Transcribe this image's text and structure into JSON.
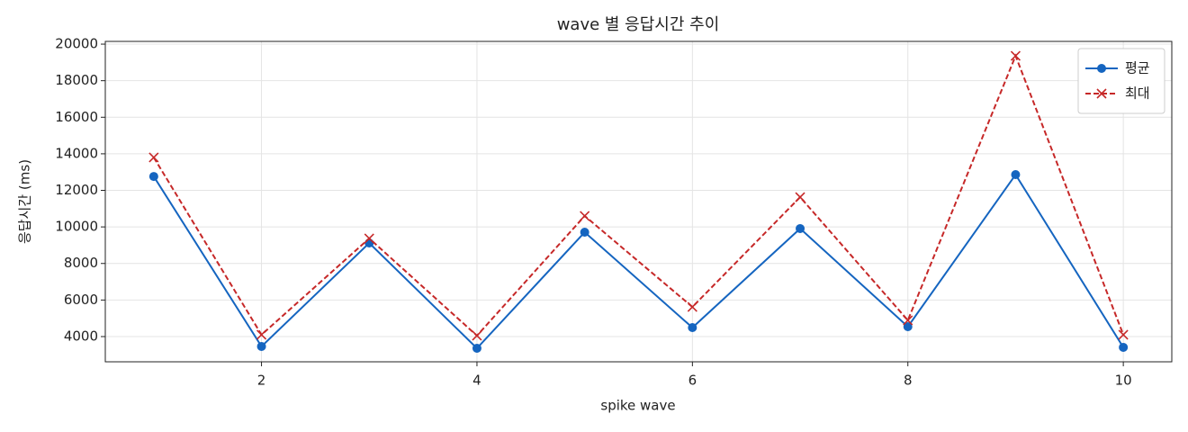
{
  "chart_data": {
    "type": "line",
    "title": "wave 별 응답시간 추이",
    "xlabel": "spike wave",
    "ylabel": "응답시간 (ms)",
    "x": [
      1,
      2,
      3,
      4,
      5,
      6,
      7,
      8,
      9,
      10
    ],
    "series": [
      {
        "name": "평균",
        "color": "#1565c0",
        "marker": "o",
        "linestyle": "solid",
        "values": [
          12760,
          3460,
          9120,
          3360,
          9710,
          4490,
          9910,
          4540,
          12860,
          3410
        ]
      },
      {
        "name": "최대",
        "color": "#c62828",
        "marker": "x",
        "linestyle": "dashed",
        "values": [
          13800,
          4100,
          9370,
          4050,
          10600,
          5620,
          11630,
          4890,
          19360,
          4100
        ]
      }
    ],
    "xlim": [
      0.55,
      10.45
    ],
    "xticks": [
      2,
      4,
      6,
      8,
      10
    ],
    "ylim": [
      2620,
      20150
    ],
    "yticks": [
      4000,
      6000,
      8000,
      10000,
      12000,
      14000,
      16000,
      18000,
      20000
    ],
    "grid": true,
    "legend": "upper right"
  }
}
